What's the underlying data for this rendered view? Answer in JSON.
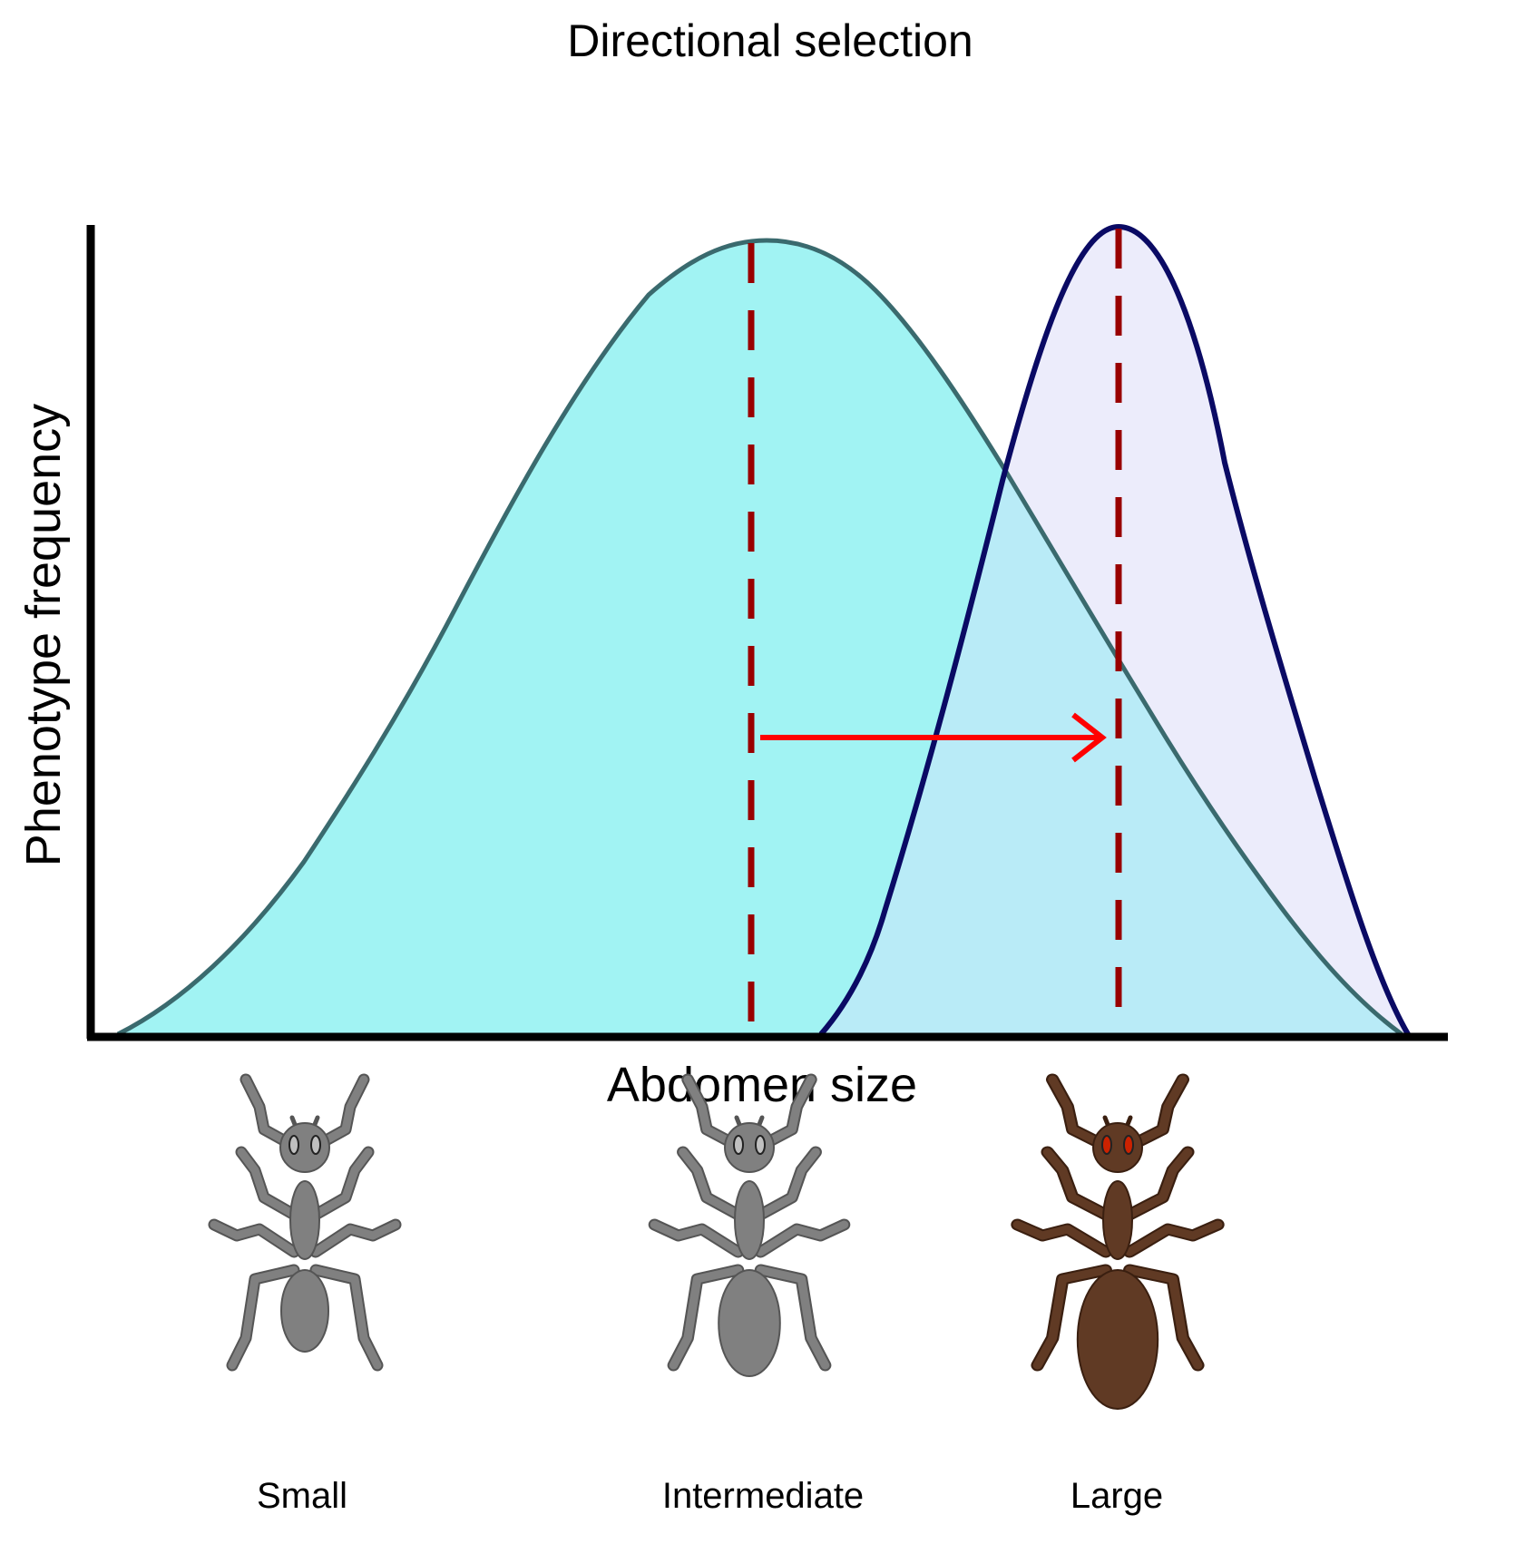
{
  "title": "Directional selection",
  "x_axis_label": "Abdomen size",
  "y_axis_label": "Phenotype frequency",
  "ants": [
    {
      "label": "Small",
      "color": "#808080",
      "stroke": "#555555",
      "eye_color": "#c0c0c0",
      "abdomen_scale": 1.0
    },
    {
      "label": "Intermediate",
      "color": "#808080",
      "stroke": "#555555",
      "eye_color": "#c0c0c0",
      "abdomen_scale": 1.3
    },
    {
      "label": "Large",
      "color": "#603A24",
      "stroke": "#3a1f10",
      "eye_color": "#cc2200",
      "abdomen_scale": 1.7
    }
  ],
  "curves": {
    "original": {
      "fill": "#A1F3F3",
      "stroke": "#3A6A6E"
    },
    "selected": {
      "fill": "#ECECFB",
      "stroke": "#0A0A64"
    },
    "overlap_fill": "#B9EBF7",
    "mean_line_color": "#990000",
    "arrow_color": "#FF0000"
  }
}
